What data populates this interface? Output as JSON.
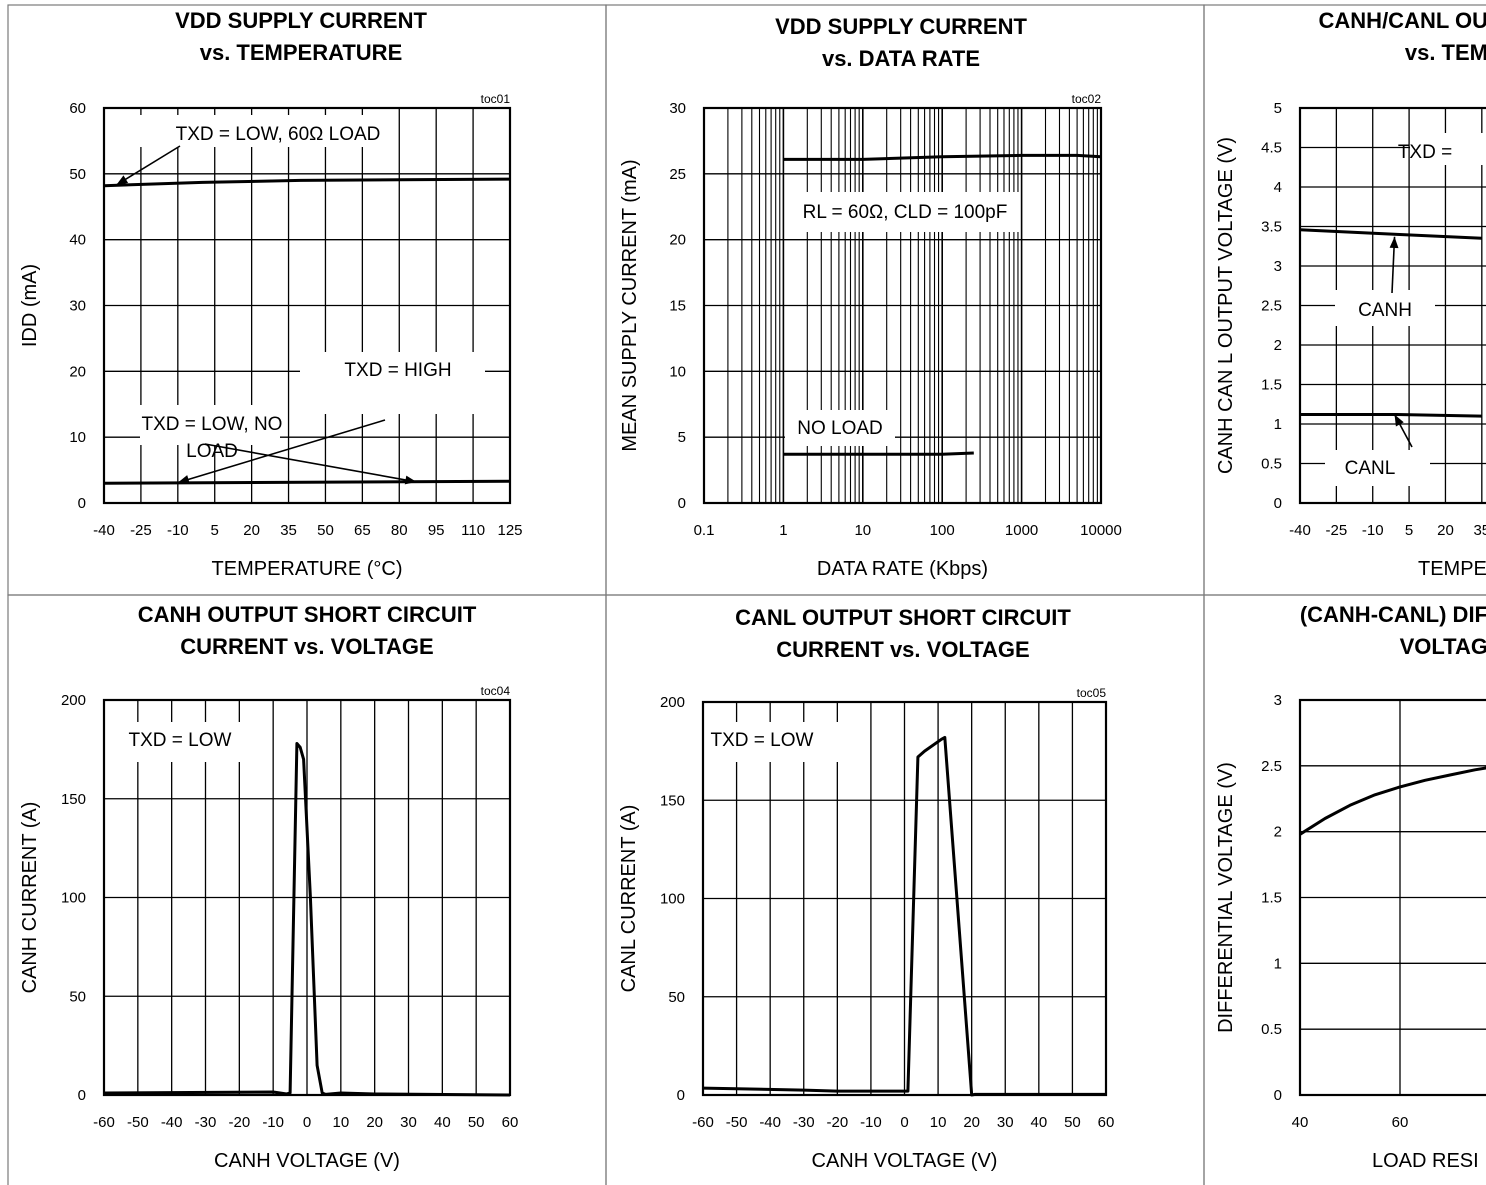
{
  "chart_data": [
    {
      "id": "toc01",
      "type": "line",
      "title": [
        "VDD SUPPLY CURRENT",
        "vs. TEMPERATURE"
      ],
      "tag": "toc01",
      "xlabel": "TEMPERATURE (°C)",
      "ylabel": "IDD (mA)",
      "xscale": "linear",
      "xlim": [
        -40,
        125
      ],
      "ylim": [
        0,
        60
      ],
      "xticks": [
        -40,
        -25,
        -10,
        5,
        20,
        35,
        50,
        65,
        80,
        95,
        110,
        125
      ],
      "yticks": [
        0,
        10,
        20,
        30,
        40,
        50,
        60
      ],
      "grid": true,
      "series": [
        {
          "x": [
            -40,
            0,
            40,
            80,
            125
          ],
          "y": [
            48.2,
            48.7,
            49.0,
            49.1,
            49.2
          ]
        },
        {
          "x": [
            -40,
            125
          ],
          "y": [
            3.0,
            3.3
          ]
        }
      ],
      "annotations": [
        {
          "text": "TXD = LOW, 60Ω LOAD",
          "arrow_to": [
            -35,
            48.3
          ]
        },
        {
          "text": "TXD = HIGH",
          "arrow_to": [
            -10,
            3.1
          ]
        },
        {
          "text": "TXD = LOW, NO\nLOAD",
          "arrow_to": [
            87,
            3.2
          ]
        }
      ]
    },
    {
      "id": "toc02",
      "type": "line",
      "title": [
        "VDD SUPPLY CURRENT",
        "vs. DATA RATE"
      ],
      "tag": "toc02",
      "xlabel": "DATA RATE (Kbps)",
      "ylabel": "MEAN SUPPLY CURRENT (mA)",
      "xscale": "log",
      "xlim": [
        0.1,
        10000
      ],
      "ylim": [
        0,
        30
      ],
      "xticks": [
        0.1,
        1,
        10,
        100,
        1000,
        10000
      ],
      "yticks": [
        0,
        5,
        10,
        15,
        20,
        25,
        30
      ],
      "grid": true,
      "series": [
        {
          "x": [
            1,
            10,
            100,
            1000,
            5000,
            10000
          ],
          "y": [
            26.1,
            26.1,
            26.3,
            26.4,
            26.4,
            26.3
          ]
        },
        {
          "x": [
            1,
            10,
            100,
            250
          ],
          "y": [
            3.7,
            3.7,
            3.7,
            3.8
          ]
        }
      ],
      "annotations": [
        {
          "text": "RL = 60Ω, CLD = 100pF"
        },
        {
          "text": "NO LOAD"
        }
      ]
    },
    {
      "id": "toc03",
      "type": "line",
      "title": [
        "CANH/CANL OU",
        "vs. TEM"
      ],
      "xlabel": "TEMPE",
      "ylabel": "CANH CAN L OUTPUT VOLTAGE (V)",
      "xscale": "linear",
      "xlim": [
        -40,
        125
      ],
      "ylim": [
        0,
        5
      ],
      "xticks": [
        -40,
        -25,
        -10,
        5,
        20,
        35
      ],
      "ytick_labels": [
        "0",
        "0.5",
        "1",
        "1.5",
        "2",
        "2.5",
        "3",
        "3.5",
        "4",
        "4.5",
        "5"
      ],
      "grid": true,
      "series": [
        {
          "name": "CANH",
          "x": [
            -40,
            0,
            35
          ],
          "y": [
            3.46,
            3.4,
            3.35
          ]
        },
        {
          "name": "CANL",
          "x": [
            -40,
            0,
            35
          ],
          "y": [
            1.12,
            1.12,
            1.1
          ]
        }
      ],
      "annotations": [
        {
          "text": "TXD ="
        },
        {
          "text": "CANH",
          "arrow_to": [
            -1,
            3.37
          ]
        },
        {
          "text": "CANL",
          "arrow_to": [
            -1,
            1.12
          ]
        }
      ]
    },
    {
      "id": "toc04",
      "type": "line",
      "title": [
        "CANH OUTPUT SHORT CIRCUIT",
        "CURRENT vs. VOLTAGE"
      ],
      "tag": "toc04",
      "xlabel": "CANH VOLTAGE (V)",
      "ylabel": "CANH CURRENT (A)",
      "xscale": "linear",
      "xlim": [
        -60,
        60
      ],
      "ylim": [
        0,
        200
      ],
      "xticks": [
        -60,
        -50,
        -40,
        -30,
        -20,
        -10,
        0,
        10,
        20,
        30,
        40,
        50,
        60
      ],
      "yticks": [
        0,
        50,
        100,
        150,
        200
      ],
      "grid": true,
      "series": [
        {
          "x": [
            -60,
            -10,
            -6,
            -5,
            -3,
            -2,
            -1,
            1,
            3,
            4.5,
            5.5,
            10,
            20,
            60
          ],
          "y": [
            1,
            1.5,
            0.5,
            1,
            178,
            176,
            170,
            100,
            15,
            1,
            0.3,
            1,
            0.5,
            0
          ]
        }
      ],
      "annotations": [
        {
          "text": "TXD = LOW"
        }
      ]
    },
    {
      "id": "toc05",
      "type": "line",
      "title": [
        "CANL OUTPUT SHORT CIRCUIT",
        "CURRENT vs. VOLTAGE"
      ],
      "tag": "toc05",
      "xlabel": "CANH VOLTAGE (V)",
      "ylabel": "CANL CURRENT (A)",
      "xscale": "linear",
      "xlim": [
        -60,
        60
      ],
      "ylim": [
        0,
        200
      ],
      "xticks": [
        -60,
        -50,
        -40,
        -30,
        -20,
        -10,
        0,
        10,
        20,
        30,
        40,
        50,
        60
      ],
      "yticks": [
        0,
        50,
        100,
        150,
        200
      ],
      "grid": true,
      "series": [
        {
          "x": [
            -60,
            -50,
            -30,
            -20,
            0,
            1,
            4,
            6,
            11,
            12,
            20,
            21,
            60
          ],
          "y": [
            3.5,
            3.2,
            2.5,
            2,
            2,
            2,
            172,
            175,
            181,
            182,
            0,
            0.3,
            0.3
          ]
        }
      ],
      "annotations": [
        {
          "text": "TXD = LOW"
        }
      ]
    },
    {
      "id": "toc06",
      "type": "line",
      "title": [
        "(CANH-CANL) DIF",
        "VOLTAG"
      ],
      "xlabel": "LOAD RESI",
      "ylabel": "DIFFERENTIAL VOLTAGE (V)",
      "xscale": "linear",
      "xlim": [
        40,
        120
      ],
      "ylim": [
        0,
        3
      ],
      "xticks": [
        40,
        60
      ],
      "ytick_labels": [
        "0",
        "0.5",
        "1",
        "1.5",
        "2",
        "2.5",
        "3"
      ],
      "grid": true,
      "series": [
        {
          "x": [
            40,
            45,
            50,
            55,
            60,
            65,
            70,
            75,
            80
          ],
          "y": [
            1.98,
            2.1,
            2.2,
            2.28,
            2.34,
            2.39,
            2.43,
            2.47,
            2.5
          ]
        }
      ],
      "annotations": []
    }
  ]
}
